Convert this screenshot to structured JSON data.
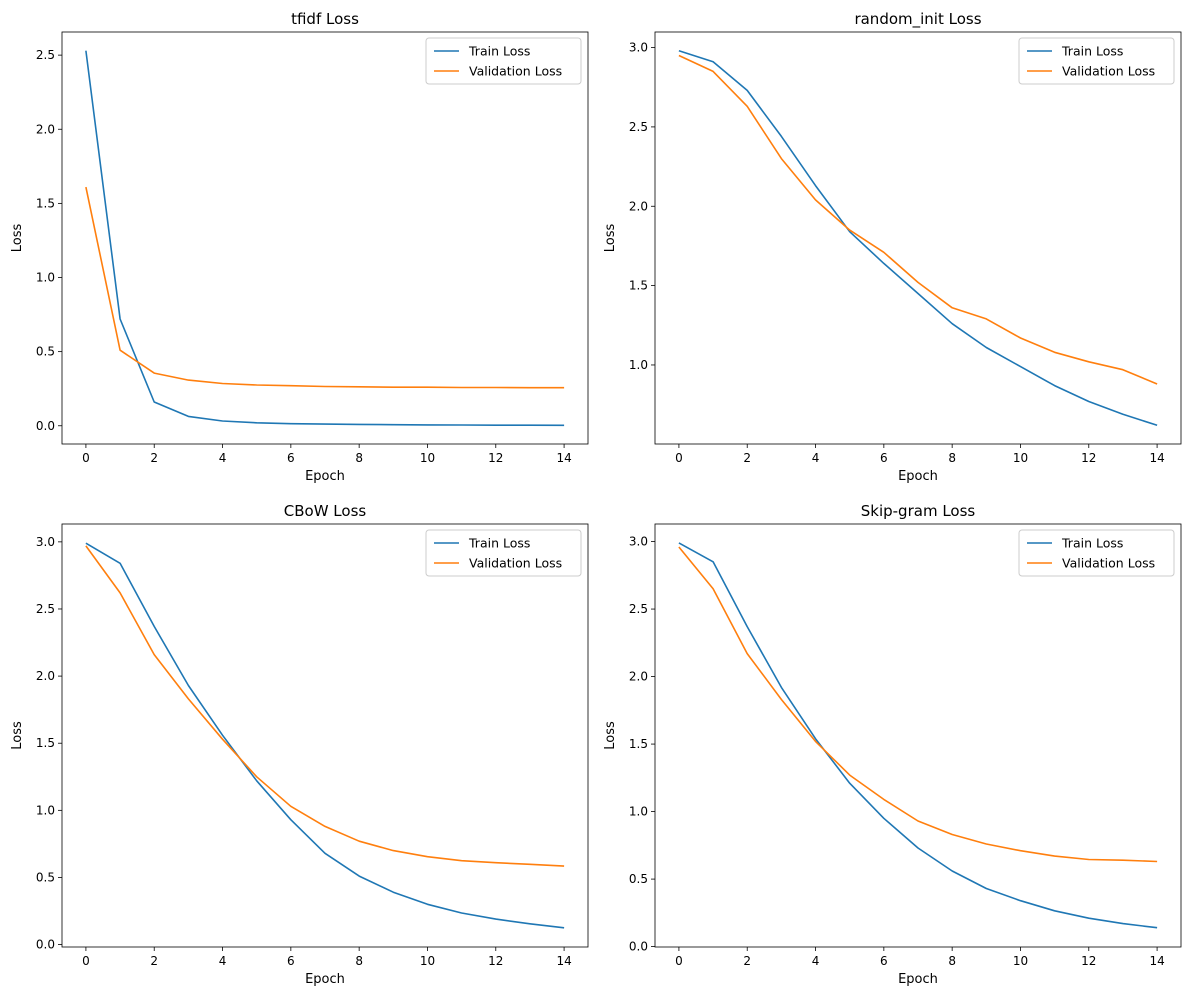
{
  "chart_data": [
    {
      "type": "line",
      "title": "tfidf Loss",
      "xlabel": "Epoch",
      "ylabel": "Loss",
      "x": [
        0,
        1,
        2,
        3,
        4,
        5,
        6,
        7,
        8,
        9,
        10,
        11,
        12,
        13,
        14
      ],
      "xlim": [
        -0.7,
        14.7
      ],
      "ylim": [
        -0.123,
        2.656
      ],
      "xticks": [
        0,
        2,
        4,
        6,
        8,
        10,
        12,
        14
      ],
      "yticks": [
        0.0,
        0.5,
        1.0,
        1.5,
        2.0,
        2.5
      ],
      "legend": "top-right",
      "series": [
        {
          "name": "Train Loss",
          "color": "#1f77b4",
          "values": [
            2.53,
            0.72,
            0.16,
            0.063,
            0.032,
            0.02,
            0.014,
            0.011,
            0.009,
            0.007,
            0.006,
            0.005,
            0.004,
            0.0035,
            0.003
          ]
        },
        {
          "name": "Validation Loss",
          "color": "#ff7f0e",
          "values": [
            1.61,
            0.51,
            0.355,
            0.308,
            0.285,
            0.275,
            0.27,
            0.265,
            0.263,
            0.26,
            0.26,
            0.258,
            0.258,
            0.257,
            0.257
          ]
        }
      ]
    },
    {
      "type": "line",
      "title": "random_init Loss",
      "xlabel": "Epoch",
      "ylabel": "Loss",
      "x": [
        0,
        1,
        2,
        3,
        4,
        5,
        6,
        7,
        8,
        9,
        10,
        11,
        12,
        13,
        14
      ],
      "xlim": [
        -0.7,
        14.7
      ],
      "ylim": [
        0.502,
        3.098
      ],
      "xticks": [
        0,
        2,
        4,
        6,
        8,
        10,
        12,
        14
      ],
      "yticks": [
        1.0,
        1.5,
        2.0,
        2.5,
        3.0
      ],
      "legend": "top-right",
      "series": [
        {
          "name": "Train Loss",
          "color": "#1f77b4",
          "values": [
            2.98,
            2.91,
            2.73,
            2.44,
            2.13,
            1.84,
            1.64,
            1.45,
            1.26,
            1.11,
            0.99,
            0.87,
            0.77,
            0.69,
            0.62
          ]
        },
        {
          "name": "Validation Loss",
          "color": "#ff7f0e",
          "values": [
            2.95,
            2.85,
            2.63,
            2.3,
            2.04,
            1.85,
            1.71,
            1.52,
            1.36,
            1.29,
            1.17,
            1.08,
            1.02,
            0.97,
            0.88
          ]
        }
      ]
    },
    {
      "type": "line",
      "title": "CBoW Loss",
      "xlabel": "Epoch",
      "ylabel": "Loss",
      "x": [
        0,
        1,
        2,
        3,
        4,
        5,
        6,
        7,
        8,
        9,
        10,
        11,
        12,
        13,
        14
      ],
      "xlim": [
        -0.7,
        14.7
      ],
      "ylim": [
        -0.018,
        3.133
      ],
      "xticks": [
        0,
        2,
        4,
        6,
        8,
        10,
        12,
        14
      ],
      "yticks": [
        0.0,
        0.5,
        1.0,
        1.5,
        2.0,
        2.5,
        3.0
      ],
      "legend": "top-right",
      "series": [
        {
          "name": "Train Loss",
          "color": "#1f77b4",
          "values": [
            2.99,
            2.84,
            2.37,
            1.93,
            1.56,
            1.22,
            0.93,
            0.68,
            0.51,
            0.39,
            0.3,
            0.235,
            0.19,
            0.155,
            0.125
          ]
        },
        {
          "name": "Validation Loss",
          "color": "#ff7f0e",
          "values": [
            2.97,
            2.62,
            2.16,
            1.83,
            1.53,
            1.25,
            1.03,
            0.88,
            0.77,
            0.7,
            0.655,
            0.625,
            0.61,
            0.598,
            0.585
          ]
        }
      ]
    },
    {
      "type": "line",
      "title": "Skip-gram Loss",
      "xlabel": "Epoch",
      "ylabel": "Loss",
      "x": [
        0,
        1,
        2,
        3,
        4,
        5,
        6,
        7,
        8,
        9,
        10,
        11,
        12,
        13,
        14
      ],
      "xlim": [
        -0.7,
        14.7
      ],
      "ylim": [
        -0.003,
        3.13
      ],
      "xticks": [
        0,
        2,
        4,
        6,
        8,
        10,
        12,
        14
      ],
      "yticks": [
        0.0,
        0.5,
        1.0,
        1.5,
        2.0,
        2.5,
        3.0
      ],
      "legend": "top-right",
      "series": [
        {
          "name": "Train Loss",
          "color": "#1f77b4",
          "values": [
            2.99,
            2.85,
            2.37,
            1.92,
            1.54,
            1.21,
            0.95,
            0.73,
            0.56,
            0.43,
            0.34,
            0.265,
            0.21,
            0.17,
            0.14
          ]
        },
        {
          "name": "Validation Loss",
          "color": "#ff7f0e",
          "values": [
            2.96,
            2.65,
            2.17,
            1.83,
            1.52,
            1.27,
            1.09,
            0.93,
            0.83,
            0.76,
            0.71,
            0.67,
            0.645,
            0.64,
            0.63
          ]
        }
      ]
    }
  ]
}
